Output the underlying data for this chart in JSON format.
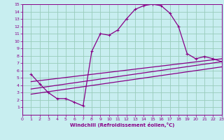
{
  "xlabel": "Windchill (Refroidissement éolien,°C)",
  "bg_color": "#c8eef0",
  "line_color": "#880088",
  "grid_color": "#99ccbb",
  "xlim": [
    0,
    23
  ],
  "ylim": [
    0,
    15
  ],
  "xticks": [
    0,
    1,
    2,
    3,
    4,
    5,
    6,
    7,
    8,
    9,
    10,
    11,
    12,
    13,
    14,
    15,
    16,
    17,
    18,
    19,
    20,
    21,
    22,
    23
  ],
  "yticks": [
    1,
    2,
    3,
    4,
    5,
    6,
    7,
    8,
    9,
    10,
    11,
    12,
    13,
    14,
    15
  ],
  "main_curve_x": [
    1,
    2,
    3,
    4,
    5,
    6,
    7,
    8,
    9,
    10,
    11,
    12,
    13,
    14,
    15,
    16,
    17,
    18,
    19,
    20,
    21,
    22,
    23
  ],
  "main_curve_y": [
    5.5,
    4.2,
    3.0,
    2.2,
    2.2,
    1.7,
    1.2,
    8.6,
    11.0,
    10.8,
    11.5,
    13.0,
    14.3,
    14.8,
    15.0,
    14.8,
    13.8,
    12.0,
    8.3,
    7.6,
    7.9,
    7.6,
    7.2
  ],
  "ref_line1_x": [
    1,
    23
  ],
  "ref_line1_y": [
    3.5,
    7.2
  ],
  "ref_line2_x": [
    1,
    23
  ],
  "ref_line2_y": [
    4.5,
    7.6
  ],
  "ref_line3_x": [
    1,
    23
  ],
  "ref_line3_y": [
    2.8,
    6.5
  ]
}
